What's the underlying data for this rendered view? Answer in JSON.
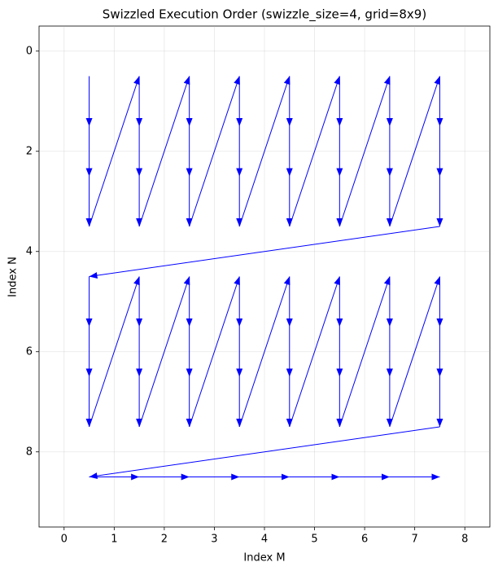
{
  "chart_data": {
    "type": "arrow-path",
    "title": "Swizzled Execution Order (swizzle_size=4, grid=8x9)",
    "x_label": "Index M",
    "y_label": "Index N",
    "color": "#0000ff",
    "grid": true,
    "invert_y": true,
    "xlim": [
      -0.5,
      8.5
    ],
    "ylim": [
      -0.5,
      9.5
    ],
    "xticks": [
      0,
      1,
      2,
      3,
      4,
      5,
      6,
      7,
      8
    ],
    "yticks": [
      0,
      2,
      4,
      6,
      8
    ],
    "x": [
      0.5,
      0.5,
      0.5,
      0.5,
      1.5,
      1.5,
      1.5,
      1.5,
      2.5,
      2.5,
      2.5,
      2.5,
      3.5,
      3.5,
      3.5,
      3.5,
      4.5,
      4.5,
      4.5,
      4.5,
      5.5,
      5.5,
      5.5,
      5.5,
      6.5,
      6.5,
      6.5,
      6.5,
      7.5,
      7.5,
      7.5,
      7.5,
      0.5,
      0.5,
      0.5,
      0.5,
      1.5,
      1.5,
      1.5,
      1.5,
      2.5,
      2.5,
      2.5,
      2.5,
      3.5,
      3.5,
      3.5,
      3.5,
      4.5,
      4.5,
      4.5,
      4.5,
      5.5,
      5.5,
      5.5,
      5.5,
      6.5,
      6.5,
      6.5,
      6.5,
      7.5,
      7.5,
      7.5,
      7.5,
      0.5,
      1.5,
      2.5,
      3.5,
      4.5,
      5.5,
      6.5,
      7.5
    ],
    "y": [
      0.5,
      1.5,
      2.5,
      3.5,
      0.5,
      1.5,
      2.5,
      3.5,
      0.5,
      1.5,
      2.5,
      3.5,
      0.5,
      1.5,
      2.5,
      3.5,
      0.5,
      1.5,
      2.5,
      3.5,
      0.5,
      1.5,
      2.5,
      3.5,
      0.5,
      1.5,
      2.5,
      3.5,
      0.5,
      1.5,
      2.5,
      3.5,
      4.5,
      5.5,
      6.5,
      7.5,
      4.5,
      5.5,
      6.5,
      7.5,
      4.5,
      5.5,
      6.5,
      7.5,
      4.5,
      5.5,
      6.5,
      7.5,
      4.5,
      5.5,
      6.5,
      7.5,
      4.5,
      5.5,
      6.5,
      7.5,
      4.5,
      5.5,
      6.5,
      7.5,
      4.5,
      5.5,
      6.5,
      7.5,
      8.5,
      8.5,
      8.5,
      8.5,
      8.5,
      8.5,
      8.5,
      8.5
    ]
  }
}
